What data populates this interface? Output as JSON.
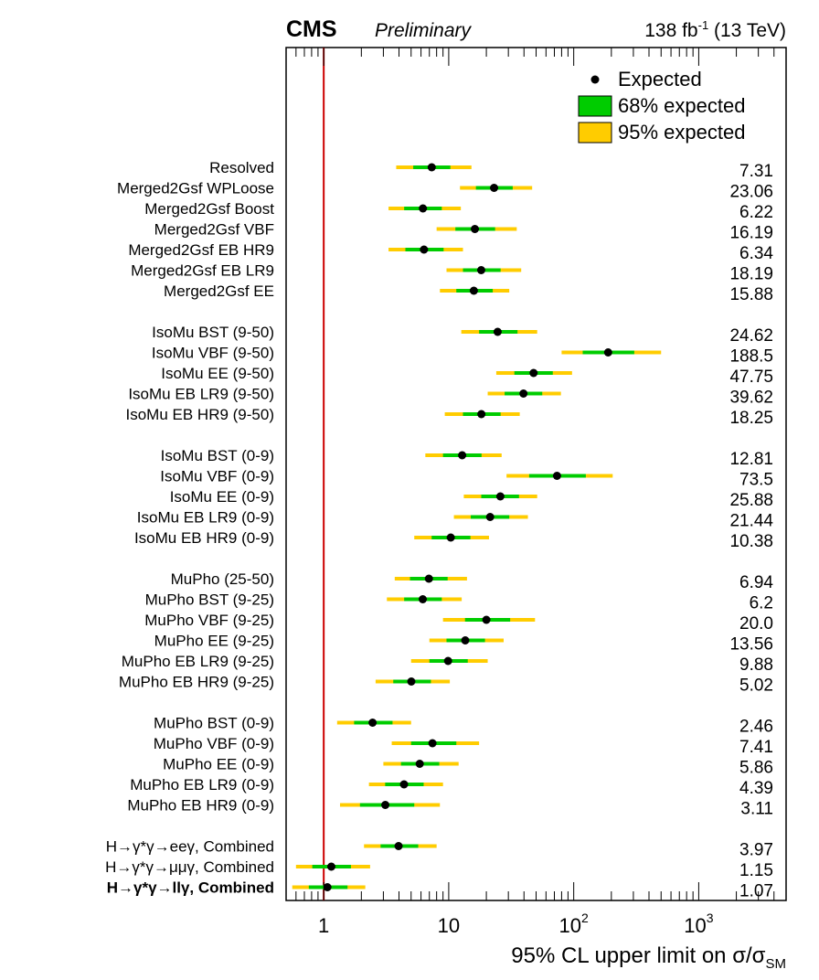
{
  "header": {
    "experiment": "CMS",
    "status": "Preliminary",
    "lumi_prefix": "138 fb",
    "lumi_exp": "-1",
    "lumi_suffix": " (13 TeV)"
  },
  "colors": {
    "band68": "#00cc00",
    "band95": "#ffcc00",
    "marker": "#000000",
    "reference_line": "#cc0000"
  },
  "chart_data": {
    "type": "forest",
    "x_scale": "log",
    "xlim": [
      0.5,
      5000
    ],
    "xlabel_text": "95% CL upper limit on σ/σ",
    "xlabel_sub": "SM",
    "reference_line_x": 1,
    "ticks": [
      {
        "value": 1,
        "label": "1",
        "sup": ""
      },
      {
        "value": 10,
        "label": "10",
        "sup": ""
      },
      {
        "value": 100,
        "label": "10",
        "sup": "2"
      },
      {
        "value": 1000,
        "label": "10",
        "sup": "3"
      }
    ],
    "legend": {
      "placement": "top-right",
      "entries": [
        {
          "label": "Expected",
          "kind": "marker"
        },
        {
          "label": "68% expected",
          "kind": "band68"
        },
        {
          "label": "95% expected",
          "kind": "band95"
        }
      ]
    },
    "rows": [
      {
        "label": "Resolved",
        "expected": 7.31,
        "band68": [
          5.2,
          10.3
        ],
        "band95": [
          3.8,
          15.2
        ],
        "value_text": "7.31",
        "bold": false
      },
      {
        "label": "Merged2Gsf WPLoose",
        "expected": 23.06,
        "band68": [
          16.5,
          32.5
        ],
        "band95": [
          12.3,
          46.5
        ],
        "value_text": "23.06",
        "bold": false
      },
      {
        "label": "Merged2Gsf Boost",
        "expected": 6.22,
        "band68": [
          4.4,
          8.8
        ],
        "band95": [
          3.3,
          12.5
        ],
        "value_text": "6.22",
        "bold": false
      },
      {
        "label": "Merged2Gsf VBF",
        "expected": 16.19,
        "band68": [
          11.3,
          23.5
        ],
        "band95": [
          8.0,
          35.0
        ],
        "value_text": "16.19",
        "bold": false
      },
      {
        "label": "Merged2Gsf EB HR9",
        "expected": 6.34,
        "band68": [
          4.5,
          9.1
        ],
        "band95": [
          3.3,
          13.0
        ],
        "value_text": "6.34",
        "bold": false
      },
      {
        "label": "Merged2Gsf EB LR9",
        "expected": 18.19,
        "band68": [
          13.0,
          26.0
        ],
        "band95": [
          9.6,
          38.0
        ],
        "value_text": "18.19",
        "bold": false
      },
      {
        "label": "Merged2Gsf EE",
        "expected": 15.88,
        "band68": [
          11.5,
          22.5
        ],
        "band95": [
          8.5,
          30.5
        ],
        "value_text": "15.88",
        "bold": false
      },
      {
        "label": "IsoMu BST (9-50)",
        "expected": 24.62,
        "band68": [
          17.5,
          35.5
        ],
        "band95": [
          12.6,
          51.0
        ],
        "value_text": "24.62",
        "bold": false
      },
      {
        "label": "IsoMu VBF (9-50)",
        "expected": 188.5,
        "band68": [
          118,
          305
        ],
        "band95": [
          80,
          500
        ],
        "value_text": "188.5",
        "bold": false
      },
      {
        "label": "IsoMu EE (9-50)",
        "expected": 47.75,
        "band68": [
          33.5,
          68.0
        ],
        "band95": [
          24.0,
          97.0
        ],
        "value_text": "47.75",
        "bold": false
      },
      {
        "label": "IsoMu EB LR9 (9-50)",
        "expected": 39.62,
        "band68": [
          28.0,
          56.0
        ],
        "band95": [
          20.5,
          79.0
        ],
        "value_text": "39.62",
        "bold": false
      },
      {
        "label": "IsoMu EB HR9 (9-50)",
        "expected": 18.25,
        "band68": [
          13.0,
          26.0
        ],
        "band95": [
          9.3,
          37.0
        ],
        "value_text": "18.25",
        "bold": false
      },
      {
        "label": "IsoMu BST (0-9)",
        "expected": 12.81,
        "band68": [
          9.0,
          18.3
        ],
        "band95": [
          6.5,
          26.5
        ],
        "value_text": "12.81",
        "bold": false
      },
      {
        "label": "IsoMu VBF (0-9)",
        "expected": 73.5,
        "band68": [
          44,
          125
        ],
        "band95": [
          29,
          205
        ],
        "value_text": "73.5",
        "bold": false
      },
      {
        "label": "IsoMu EE (0-9)",
        "expected": 25.88,
        "band68": [
          18.2,
          36.5
        ],
        "band95": [
          13.2,
          51.0
        ],
        "value_text": "25.88",
        "bold": false
      },
      {
        "label": "IsoMu EB LR9 (0-9)",
        "expected": 21.44,
        "band68": [
          15.0,
          30.5
        ],
        "band95": [
          11.0,
          43.0
        ],
        "value_text": "21.44",
        "bold": false
      },
      {
        "label": "IsoMu EB HR9 (0-9)",
        "expected": 10.38,
        "band68": [
          7.3,
          14.9
        ],
        "band95": [
          5.3,
          21.0
        ],
        "value_text": "10.38",
        "bold": false
      },
      {
        "label": "MuPho (25-50)",
        "expected": 6.94,
        "band68": [
          4.9,
          9.8
        ],
        "band95": [
          3.7,
          14.0
        ],
        "value_text": "6.94",
        "bold": false
      },
      {
        "label": "MuPho BST (9-25)",
        "expected": 6.2,
        "band68": [
          4.4,
          8.8
        ],
        "band95": [
          3.2,
          12.7
        ],
        "value_text": "6.2",
        "bold": false
      },
      {
        "label": "MuPho VBF (9-25)",
        "expected": 20.0,
        "band68": [
          13.5,
          31.0
        ],
        "band95": [
          9.0,
          49.0
        ],
        "value_text": "20.0",
        "bold": false
      },
      {
        "label": "MuPho EE (9-25)",
        "expected": 13.56,
        "band68": [
          9.6,
          19.5
        ],
        "band95": [
          7.0,
          27.5
        ],
        "value_text": "13.56",
        "bold": false
      },
      {
        "label": "MuPho EB LR9 (9-25)",
        "expected": 9.88,
        "band68": [
          7.0,
          14.2
        ],
        "band95": [
          5.0,
          20.5
        ],
        "value_text": "9.88",
        "bold": false
      },
      {
        "label": "MuPho EB HR9 (9-25)",
        "expected": 5.02,
        "band68": [
          3.6,
          7.2
        ],
        "band95": [
          2.6,
          10.2
        ],
        "value_text": "5.02",
        "bold": false
      },
      {
        "label": "MuPho BST (0-9)",
        "expected": 2.46,
        "band68": [
          1.75,
          3.55
        ],
        "band95": [
          1.28,
          5.0
        ],
        "value_text": "2.46",
        "bold": false
      },
      {
        "label": "MuPho VBF (0-9)",
        "expected": 7.41,
        "band68": [
          5.0,
          11.5
        ],
        "band95": [
          3.5,
          17.5
        ],
        "value_text": "7.41",
        "bold": false
      },
      {
        "label": "MuPho EE (0-9)",
        "expected": 5.86,
        "band68": [
          4.15,
          8.4
        ],
        "band95": [
          3.0,
          12.0
        ],
        "value_text": "5.86",
        "bold": false
      },
      {
        "label": "MuPho EB LR9 (0-9)",
        "expected": 4.39,
        "band68": [
          3.1,
          6.3
        ],
        "band95": [
          2.3,
          9.0
        ],
        "value_text": "4.39",
        "bold": false
      },
      {
        "label": "MuPho EB HR9 (0-9)",
        "expected": 3.11,
        "band68": [
          1.95,
          5.3
        ],
        "band95": [
          1.35,
          8.5
        ],
        "value_text": "3.11",
        "bold": false
      },
      {
        "label": "H→γ*γ→eeγ, Combined",
        "expected": 3.97,
        "band68": [
          2.85,
          5.7
        ],
        "band95": [
          2.1,
          8.0
        ],
        "value_text": "3.97",
        "bold": false
      },
      {
        "label": "H→γ*γ→μμγ, Combined",
        "expected": 1.15,
        "band68": [
          0.81,
          1.65
        ],
        "band95": [
          0.6,
          2.35
        ],
        "value_text": "1.15",
        "bold": false
      },
      {
        "label": "H→γ*γ→llγ, Combined",
        "expected": 1.07,
        "band68": [
          0.76,
          1.55
        ],
        "band95": [
          0.56,
          2.15
        ],
        "value_text": "1.07",
        "bold": true
      }
    ]
  }
}
